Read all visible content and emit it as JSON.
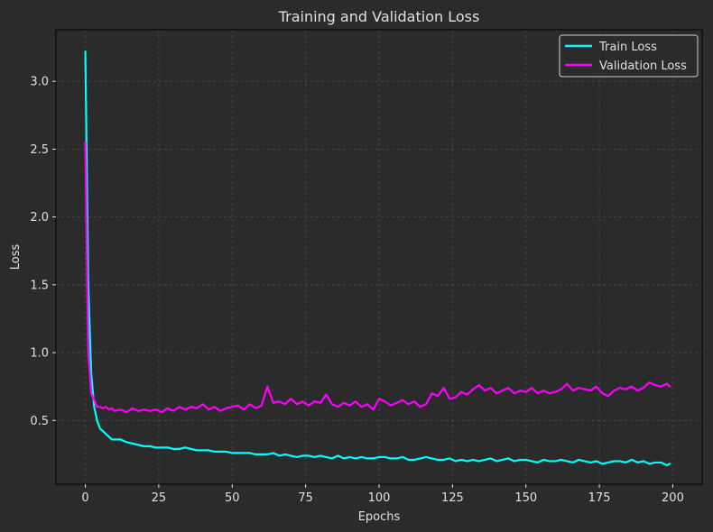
{
  "chart_data": {
    "type": "line",
    "title": "Training and Validation Loss",
    "xlabel": "Epochs",
    "ylabel": "Loss",
    "xlim": [
      -10,
      210
    ],
    "ylim": [
      0.03,
      3.38
    ],
    "xticks": [
      0,
      25,
      50,
      75,
      100,
      125,
      150,
      175,
      200
    ],
    "yticks": [
      0.5,
      1.0,
      1.5,
      2.0,
      2.5,
      3.0
    ],
    "grid": true,
    "legend_position": "top-right",
    "colors": {
      "background": "#2b2b2b",
      "axes_edge": "#000000",
      "grid": "#555555",
      "text": "#e0e0e0"
    },
    "series": [
      {
        "name": "Train Loss",
        "color": "#00ffff",
        "x": [
          0,
          1,
          2,
          3,
          4,
          5,
          6,
          7,
          8,
          9,
          10,
          12,
          14,
          16,
          18,
          20,
          22,
          24,
          26,
          28,
          30,
          32,
          34,
          36,
          38,
          40,
          42,
          44,
          46,
          48,
          50,
          52,
          54,
          56,
          58,
          60,
          62,
          64,
          66,
          68,
          70,
          72,
          74,
          76,
          78,
          80,
          82,
          84,
          86,
          88,
          90,
          92,
          94,
          96,
          98,
          100,
          102,
          104,
          106,
          108,
          110,
          112,
          114,
          116,
          118,
          120,
          122,
          124,
          126,
          128,
          130,
          132,
          134,
          136,
          138,
          140,
          142,
          144,
          146,
          148,
          150,
          152,
          154,
          156,
          158,
          160,
          162,
          164,
          166,
          168,
          170,
          172,
          174,
          176,
          178,
          180,
          182,
          184,
          186,
          188,
          190,
          192,
          194,
          196,
          198,
          199
        ],
        "values": [
          3.22,
          1.5,
          0.85,
          0.6,
          0.5,
          0.44,
          0.42,
          0.4,
          0.38,
          0.36,
          0.36,
          0.36,
          0.34,
          0.33,
          0.32,
          0.31,
          0.31,
          0.3,
          0.3,
          0.3,
          0.29,
          0.29,
          0.3,
          0.29,
          0.28,
          0.28,
          0.28,
          0.27,
          0.27,
          0.27,
          0.26,
          0.26,
          0.26,
          0.26,
          0.25,
          0.25,
          0.25,
          0.26,
          0.24,
          0.25,
          0.24,
          0.23,
          0.24,
          0.24,
          0.23,
          0.24,
          0.23,
          0.22,
          0.24,
          0.22,
          0.23,
          0.22,
          0.23,
          0.22,
          0.22,
          0.23,
          0.23,
          0.22,
          0.22,
          0.23,
          0.21,
          0.21,
          0.22,
          0.23,
          0.22,
          0.21,
          0.21,
          0.22,
          0.2,
          0.21,
          0.2,
          0.21,
          0.2,
          0.21,
          0.22,
          0.2,
          0.21,
          0.22,
          0.2,
          0.21,
          0.21,
          0.2,
          0.19,
          0.21,
          0.2,
          0.2,
          0.21,
          0.2,
          0.19,
          0.21,
          0.2,
          0.19,
          0.2,
          0.18,
          0.19,
          0.2,
          0.2,
          0.19,
          0.21,
          0.19,
          0.2,
          0.18,
          0.19,
          0.19,
          0.17,
          0.18
        ]
      },
      {
        "name": "Validation Loss",
        "color": "#ff00ff",
        "x": [
          0,
          1,
          2,
          3,
          4,
          5,
          6,
          7,
          8,
          9,
          10,
          12,
          14,
          16,
          18,
          20,
          22,
          24,
          26,
          28,
          30,
          32,
          34,
          36,
          38,
          40,
          42,
          44,
          46,
          48,
          50,
          52,
          54,
          56,
          58,
          60,
          62,
          64,
          66,
          68,
          70,
          72,
          74,
          76,
          78,
          80,
          82,
          84,
          86,
          88,
          90,
          92,
          94,
          96,
          98,
          100,
          102,
          104,
          106,
          108,
          110,
          112,
          114,
          116,
          118,
          120,
          122,
          124,
          126,
          128,
          130,
          132,
          134,
          136,
          138,
          140,
          142,
          144,
          146,
          148,
          150,
          152,
          154,
          156,
          158,
          160,
          162,
          164,
          166,
          168,
          170,
          172,
          174,
          176,
          178,
          180,
          182,
          184,
          186,
          188,
          190,
          192,
          194,
          196,
          198,
          199
        ],
        "values": [
          2.55,
          1.0,
          0.7,
          0.65,
          0.6,
          0.6,
          0.59,
          0.6,
          0.58,
          0.59,
          0.57,
          0.58,
          0.56,
          0.59,
          0.57,
          0.58,
          0.57,
          0.58,
          0.56,
          0.59,
          0.57,
          0.6,
          0.58,
          0.6,
          0.59,
          0.62,
          0.58,
          0.6,
          0.57,
          0.59,
          0.6,
          0.61,
          0.58,
          0.62,
          0.59,
          0.61,
          0.75,
          0.63,
          0.64,
          0.62,
          0.66,
          0.62,
          0.64,
          0.61,
          0.64,
          0.63,
          0.69,
          0.62,
          0.6,
          0.63,
          0.61,
          0.64,
          0.6,
          0.62,
          0.58,
          0.66,
          0.64,
          0.61,
          0.63,
          0.65,
          0.62,
          0.64,
          0.6,
          0.62,
          0.7,
          0.68,
          0.74,
          0.66,
          0.67,
          0.71,
          0.69,
          0.73,
          0.76,
          0.72,
          0.74,
          0.7,
          0.72,
          0.74,
          0.7,
          0.72,
          0.71,
          0.74,
          0.7,
          0.72,
          0.7,
          0.71,
          0.73,
          0.77,
          0.72,
          0.74,
          0.73,
          0.72,
          0.75,
          0.7,
          0.68,
          0.72,
          0.74,
          0.73,
          0.75,
          0.72,
          0.74,
          0.78,
          0.76,
          0.75,
          0.77,
          0.75
        ]
      }
    ]
  }
}
